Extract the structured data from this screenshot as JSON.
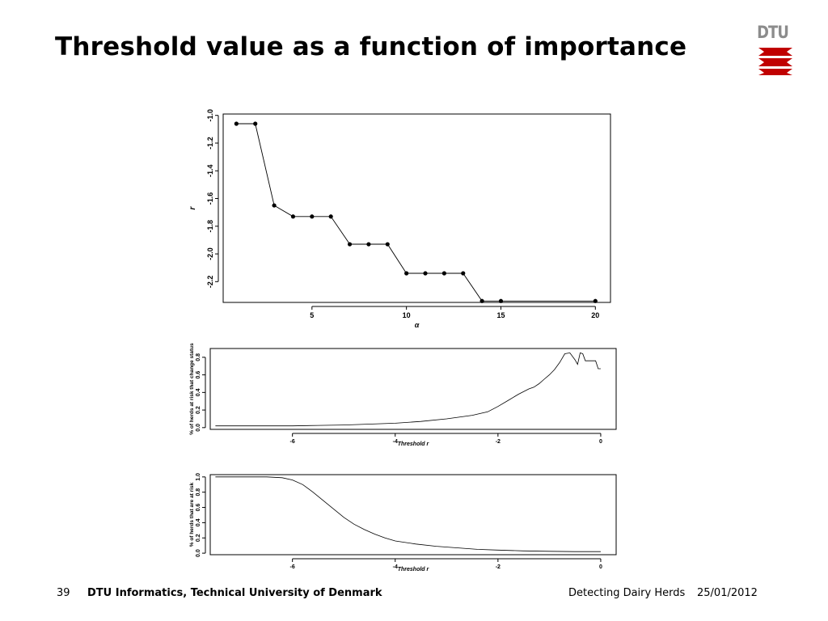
{
  "slide": {
    "title": "Threshold value as a function of importance",
    "logo_text": "DTU",
    "logo_color": "#c00000"
  },
  "footer": {
    "page_number": "39",
    "organization": "DTU Informatics, Technical University of Denmark",
    "talk_title": "Detecting Dairy Herds",
    "date": "25/01/2012"
  },
  "chart_data": [
    {
      "type": "line",
      "xlabel": "α",
      "ylabel": "r",
      "xlim": [
        0.3,
        20.8
      ],
      "ylim": [
        -2.35,
        -0.99
      ],
      "xticks": [
        5,
        10,
        15,
        20
      ],
      "yticks": [
        -1.0,
        -1.2,
        -1.4,
        -1.6,
        -1.8,
        -2.0,
        -2.2
      ],
      "ytick_labels": [
        "-1.0",
        "-1.2",
        "-1.4",
        "-1.6",
        "-1.8",
        "-2.0",
        "-2.2"
      ],
      "markers": true,
      "series": [
        {
          "x": [
            1,
            2,
            3,
            4,
            5,
            6,
            7,
            8,
            9,
            10,
            11,
            12,
            13,
            14,
            15,
            20
          ],
          "y": [
            -1.06,
            -1.06,
            -1.65,
            -1.73,
            -1.73,
            -1.73,
            -1.93,
            -1.93,
            -1.93,
            -2.14,
            -2.14,
            -2.14,
            -2.14,
            -2.34,
            -2.34,
            -2.34
          ]
        }
      ]
    },
    {
      "type": "line",
      "xlabel": "Threshold r",
      "ylabel": "% of herds at risk that change status",
      "xlim": [
        -7.6,
        0.3
      ],
      "ylim": [
        -0.02,
        0.9
      ],
      "xticks": [
        -6,
        -4,
        -2,
        0
      ],
      "yticks": [
        0.0,
        0.2,
        0.4,
        0.6,
        0.8
      ],
      "ytick_labels": [
        "0.0",
        "0.2",
        "0.4",
        "0.6",
        "0.8"
      ],
      "series": [
        {
          "x": [
            -7.5,
            -6.0,
            -5.5,
            -5.0,
            -4.5,
            -4.0,
            -3.5,
            -3.0,
            -2.5,
            -2.2,
            -2.0,
            -1.8,
            -1.6,
            -1.4,
            -1.3,
            -1.2,
            -1.1,
            -1.0,
            -0.9,
            -0.8,
            -0.7,
            -0.6,
            -0.5,
            -0.45,
            -0.4,
            -0.35,
            -0.3,
            -0.25,
            -0.2,
            -0.1,
            -0.05,
            0.0
          ],
          "y": [
            0.02,
            0.02,
            0.025,
            0.03,
            0.04,
            0.05,
            0.07,
            0.1,
            0.14,
            0.18,
            0.24,
            0.31,
            0.38,
            0.44,
            0.46,
            0.5,
            0.55,
            0.6,
            0.66,
            0.74,
            0.84,
            0.85,
            0.77,
            0.72,
            0.85,
            0.84,
            0.76,
            0.76,
            0.76,
            0.76,
            0.67,
            0.67
          ]
        }
      ]
    },
    {
      "type": "line",
      "xlabel": "Threshold r",
      "ylabel": "% of herds that are at risk",
      "xlim": [
        -7.6,
        0.3
      ],
      "ylim": [
        -0.02,
        1.03
      ],
      "xticks": [
        -6,
        -4,
        -2,
        0
      ],
      "yticks": [
        0.0,
        0.2,
        0.4,
        0.6,
        0.8,
        1.0
      ],
      "ytick_labels": [
        "0.0",
        "0.2",
        "0.4",
        "0.6",
        "0.8",
        "1.0"
      ],
      "series": [
        {
          "x": [
            -7.5,
            -6.5,
            -6.2,
            -6.0,
            -5.8,
            -5.6,
            -5.4,
            -5.2,
            -5.0,
            -4.8,
            -4.6,
            -4.4,
            -4.2,
            -4.0,
            -3.6,
            -3.2,
            -2.8,
            -2.4,
            -2.0,
            -1.5,
            -1.0,
            -0.5,
            0.0
          ],
          "y": [
            1.0,
            1.0,
            0.99,
            0.96,
            0.9,
            0.8,
            0.69,
            0.58,
            0.47,
            0.38,
            0.31,
            0.25,
            0.2,
            0.16,
            0.12,
            0.09,
            0.07,
            0.05,
            0.04,
            0.03,
            0.025,
            0.02,
            0.02
          ]
        }
      ]
    }
  ]
}
